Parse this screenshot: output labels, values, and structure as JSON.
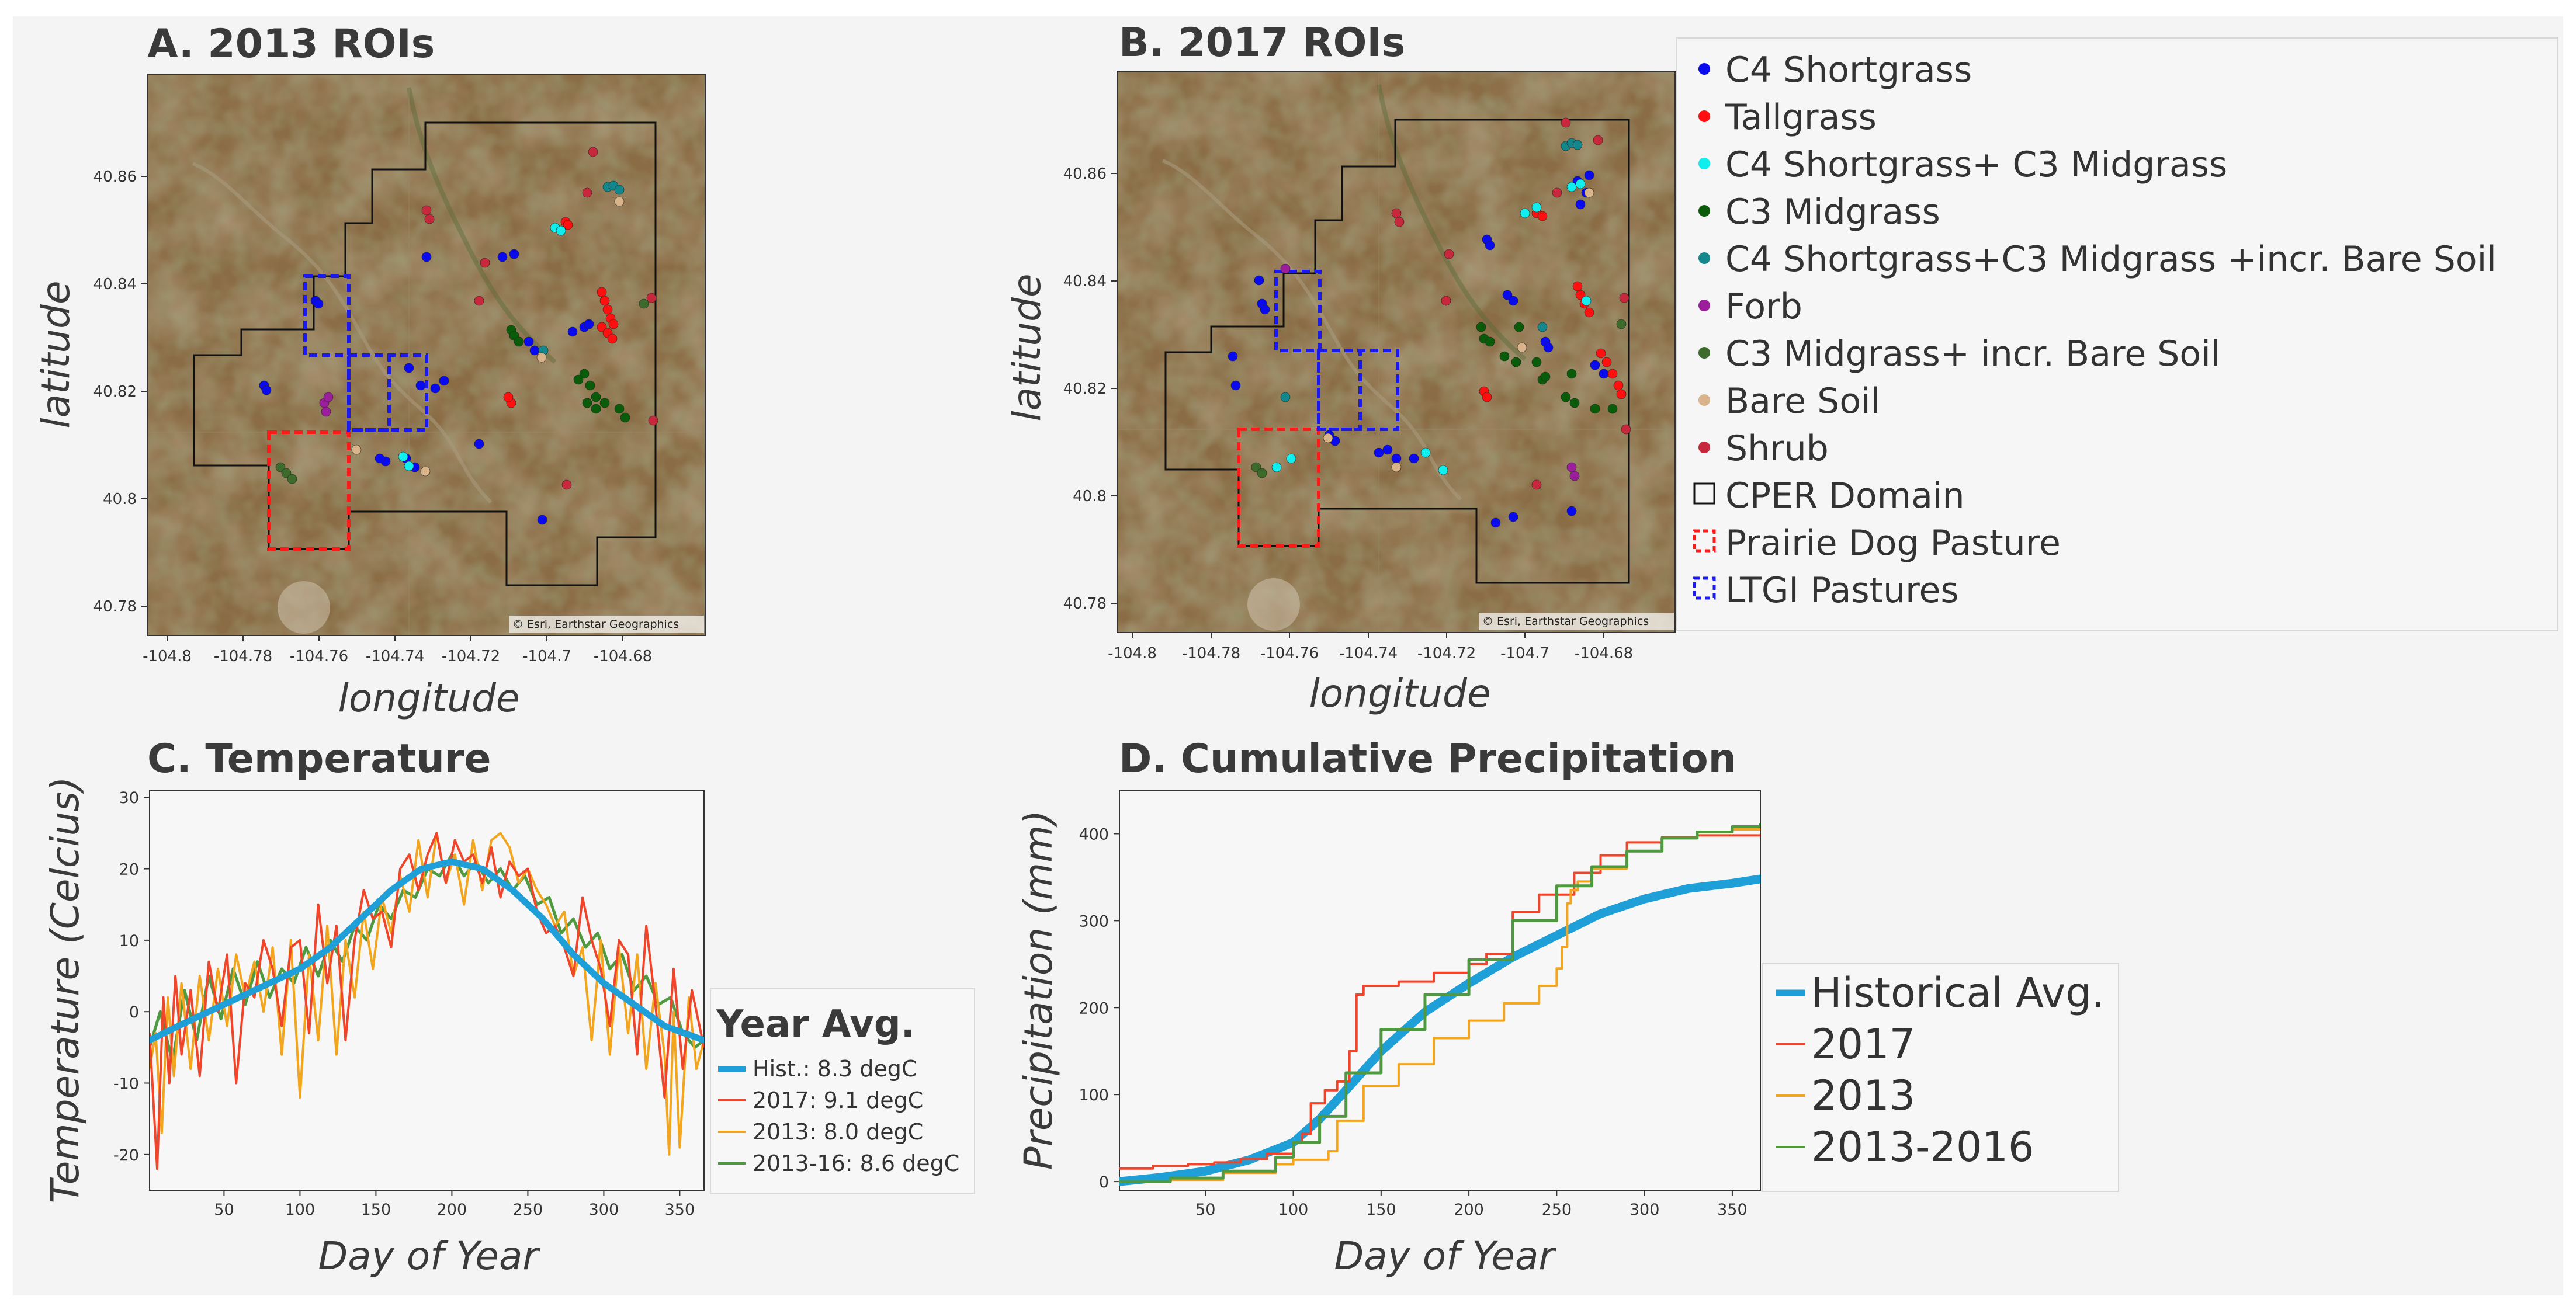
{
  "figure": {
    "background": "#f3f4f3"
  },
  "colors": {
    "c4_shortgrass": "#0a0aee",
    "tallgrass": "#ff1010",
    "c4_c3_midgrass": "#10eeee",
    "c3_midgrass": "#0a5c0a",
    "c4_c3_bare": "#12878c",
    "forb": "#9b1f9b",
    "c3_midgrass_bare": "#3d6b2b",
    "bare_soil": "#d9b48a",
    "shrub": "#c8283c",
    "domain_border": "#111111",
    "prairie_dog": "#ff1a1a",
    "ltgi": "#1a1aee",
    "hist": "#1f9fd8",
    "y2017": "#f0452a",
    "y2013": "#f2a51d",
    "y2013_16": "#4f9a40",
    "map_base": "#8a6c45"
  },
  "map_panels": [
    {
      "title": "A. 2013 ROIs",
      "xlabel": "longitude",
      "ylabel": "latitude",
      "credit": "© Esri, Earthstar Geographics",
      "x_ticks": [
        "-104.8",
        "-104.78",
        "-104.76",
        "-104.74",
        "-104.72",
        "-104.7",
        "-104.68"
      ],
      "y_ticks": [
        "40.86",
        "40.84",
        "40.82",
        "40.8",
        "40.78"
      ]
    },
    {
      "title": "B. 2017 ROIs",
      "xlabel": "longitude",
      "ylabel": "latitude",
      "credit": "© Esri, Earthstar Geographics",
      "x_ticks": [
        "-104.8",
        "-104.78",
        "-104.76",
        "-104.74",
        "-104.72",
        "-104.7",
        "-104.68"
      ],
      "y_ticks": [
        "40.86",
        "40.84",
        "40.82",
        "40.8",
        "40.78"
      ]
    }
  ],
  "roi_legend": {
    "items": [
      {
        "label": "C4 Shortgrass",
        "type": "dot",
        "color_key": "c4_shortgrass"
      },
      {
        "label": "Tallgrass",
        "type": "dot",
        "color_key": "tallgrass"
      },
      {
        "label": "C4 Shortgrass+ C3 Midgrass",
        "type": "dot",
        "color_key": "c4_c3_midgrass"
      },
      {
        "label": "C3 Midgrass",
        "type": "dot",
        "color_key": "c3_midgrass"
      },
      {
        "label": "C4 Shortgrass+C3 Midgrass +incr. Bare Soil",
        "type": "dot",
        "color_key": "c4_c3_bare"
      },
      {
        "label": "Forb",
        "type": "dot",
        "color_key": "forb"
      },
      {
        "label": "C3 Midgrass+ incr. Bare Soil",
        "type": "dot",
        "color_key": "c3_midgrass_bare"
      },
      {
        "label": "Bare Soil",
        "type": "dot",
        "color_key": "bare_soil"
      },
      {
        "label": "Shrub",
        "type": "dot",
        "color_key": "shrub"
      },
      {
        "label": "CPER Domain",
        "type": "box",
        "color_key": "domain_border"
      },
      {
        "label": "Prairie Dog Pasture",
        "type": "dashbox",
        "color_key": "prairie_dog"
      },
      {
        "label": "LTGI Pastures",
        "type": "dashbox",
        "color_key": "ltgi"
      }
    ]
  },
  "panel_c": {
    "title": "C. Temperature",
    "legend_title": "Year Avg.",
    "legend_items": [
      {
        "label": "Hist.: 8.3 degC",
        "color_key": "hist"
      },
      {
        "label": "2017: 9.1 degC",
        "color_key": "y2017"
      },
      {
        "label": "2013: 8.0 degC",
        "color_key": "y2013"
      },
      {
        "label": "2013-16: 8.6 degC",
        "color_key": "y2013_16"
      }
    ]
  },
  "panel_d": {
    "title": "D. Cumulative Precipitation",
    "legend_items": [
      {
        "label": "Historical Avg.",
        "color_key": "hist"
      },
      {
        "label": "2017",
        "color_key": "y2017"
      },
      {
        "label": "2013",
        "color_key": "y2013"
      },
      {
        "label": "2013-2016",
        "color_key": "y2013_16"
      }
    ]
  },
  "chart_data": [
    {
      "type": "line",
      "title": "C. Temperature",
      "xlabel": "Day of Year",
      "ylabel": "Temperature (Celcius)",
      "xlim": [
        1,
        366
      ],
      "ylim": [
        -25,
        31
      ],
      "x_ticks": [
        50,
        100,
        150,
        200,
        250,
        300,
        350
      ],
      "y_ticks": [
        30,
        20,
        10,
        0,
        -10,
        -20
      ],
      "series": [
        {
          "name": "Hist.: 8.3 degC",
          "color_key": "hist",
          "x": [
            1,
            20,
            40,
            60,
            80,
            100,
            120,
            140,
            160,
            180,
            200,
            220,
            240,
            260,
            280,
            300,
            320,
            340,
            366
          ],
          "values": [
            -4,
            -2,
            0,
            2,
            4,
            6,
            9,
            13,
            17,
            20,
            21,
            20,
            17,
            13,
            8,
            4,
            1,
            -2,
            -4
          ]
        },
        {
          "name": "2017: 9.1 degC",
          "color_key": "y2017",
          "x": [
            1,
            6,
            10,
            14,
            18,
            22,
            28,
            34,
            40,
            46,
            52,
            58,
            64,
            70,
            76,
            82,
            88,
            94,
            100,
            106,
            112,
            118,
            124,
            130,
            136,
            142,
            148,
            154,
            160,
            166,
            172,
            178,
            184,
            190,
            196,
            202,
            208,
            214,
            220,
            226,
            232,
            238,
            244,
            250,
            256,
            262,
            268,
            274,
            280,
            286,
            292,
            298,
            304,
            310,
            316,
            322,
            328,
            334,
            340,
            346,
            352,
            358,
            366
          ],
          "values": [
            -3,
            -22,
            2,
            -10,
            5,
            -6,
            3,
            -9,
            7,
            0,
            8,
            -10,
            4,
            2,
            10,
            6,
            -2,
            9,
            10,
            -3,
            15,
            4,
            12,
            -4,
            10,
            17,
            13,
            14,
            9,
            20,
            22,
            17,
            22,
            25,
            18,
            24,
            21,
            22,
            18,
            23,
            16,
            21,
            19,
            20,
            14,
            11,
            12,
            9,
            5,
            16,
            10,
            6,
            -2,
            10,
            8,
            -6,
            12,
            1,
            -12,
            6,
            -8,
            3,
            -5
          ]
        },
        {
          "name": "2013: 8.0 degC",
          "color_key": "y2013",
          "x": [
            1,
            5,
            9,
            13,
            17,
            22,
            28,
            34,
            40,
            46,
            52,
            58,
            64,
            70,
            76,
            82,
            88,
            94,
            100,
            106,
            112,
            118,
            124,
            130,
            136,
            142,
            148,
            154,
            160,
            166,
            172,
            178,
            184,
            190,
            196,
            202,
            208,
            214,
            220,
            226,
            232,
            238,
            244,
            250,
            256,
            262,
            268,
            274,
            280,
            286,
            292,
            298,
            304,
            310,
            316,
            322,
            328,
            334,
            340,
            343,
            346,
            350,
            356,
            361,
            366
          ],
          "values": [
            -8,
            -3,
            -17,
            2,
            -9,
            4,
            -8,
            5,
            -4,
            6,
            -2,
            8,
            2,
            7,
            0,
            9,
            -6,
            10,
            -12,
            8,
            -4,
            12,
            -6,
            10,
            2,
            14,
            6,
            16,
            11,
            19,
            14,
            24,
            16,
            25,
            18,
            22,
            15,
            24,
            17,
            24,
            25,
            23,
            18,
            20,
            17,
            15,
            12,
            14,
            5,
            9,
            -4,
            10,
            -6,
            9,
            -3,
            8,
            -8,
            4,
            -6,
            -20,
            0,
            -19,
            2,
            -8,
            -4
          ]
        },
        {
          "name": "2013-16: 8.6 degC",
          "color_key": "y2013_16",
          "x": [
            1,
            8,
            16,
            24,
            32,
            40,
            48,
            56,
            64,
            72,
            80,
            88,
            96,
            104,
            112,
            120,
            128,
            136,
            144,
            152,
            160,
            168,
            176,
            184,
            192,
            200,
            208,
            216,
            224,
            232,
            240,
            248,
            256,
            264,
            272,
            280,
            288,
            296,
            304,
            312,
            320,
            328,
            336,
            344,
            352,
            360,
            366
          ],
          "values": [
            -5,
            0,
            -7,
            3,
            -4,
            5,
            -1,
            6,
            1,
            7,
            2,
            6,
            4,
            9,
            5,
            10,
            7,
            12,
            10,
            15,
            13,
            17,
            16,
            20,
            19,
            22,
            19,
            21,
            18,
            20,
            17,
            19,
            15,
            16,
            11,
            13,
            9,
            11,
            6,
            8,
            3,
            5,
            1,
            2,
            -3,
            -5,
            -4
          ]
        }
      ]
    },
    {
      "type": "line",
      "title": "D. Cumulative Precipitation",
      "xlabel": "Day of Year",
      "ylabel": "Precipitation (mm)",
      "xlim": [
        1,
        366
      ],
      "ylim": [
        -10,
        450
      ],
      "x_ticks": [
        50,
        100,
        150,
        200,
        250,
        300,
        350
      ],
      "y_ticks": [
        400,
        300,
        200,
        100,
        0
      ],
      "series": [
        {
          "name": "Historical Avg.",
          "color_key": "hist",
          "x": [
            1,
            25,
            50,
            75,
            100,
            115,
            130,
            150,
            175,
            200,
            225,
            250,
            275,
            300,
            325,
            350,
            366
          ],
          "values": [
            0,
            5,
            12,
            25,
            45,
            72,
            105,
            150,
            195,
            228,
            258,
            283,
            308,
            325,
            337,
            343,
            348
          ]
        },
        {
          "name": "2017",
          "color_key": "y2017",
          "x": [
            1,
            20,
            40,
            55,
            70,
            85,
            100,
            105,
            110,
            118,
            125,
            132,
            136,
            140,
            160,
            180,
            200,
            210,
            225,
            240,
            260,
            275,
            290,
            310,
            330,
            366
          ],
          "values": [
            15,
            18,
            20,
            22,
            26,
            32,
            45,
            55,
            90,
            105,
            115,
            150,
            215,
            225,
            230,
            240,
            250,
            262,
            310,
            330,
            355,
            375,
            390,
            396,
            398,
            398
          ]
        },
        {
          "name": "2013",
          "color_key": "y2013",
          "x": [
            1,
            30,
            60,
            90,
            100,
            120,
            125,
            140,
            160,
            180,
            200,
            220,
            240,
            250,
            253,
            256,
            258,
            262,
            270,
            290,
            310,
            330,
            350,
            366
          ],
          "values": [
            0,
            2,
            10,
            20,
            25,
            35,
            70,
            110,
            135,
            165,
            185,
            205,
            225,
            245,
            270,
            320,
            335,
            345,
            360,
            380,
            395,
            402,
            405,
            407
          ]
        },
        {
          "name": "2013-2016",
          "color_key": "y2013_16",
          "x": [
            1,
            30,
            60,
            90,
            100,
            115,
            130,
            150,
            175,
            200,
            225,
            250,
            270,
            290,
            310,
            330,
            350,
            366
          ],
          "values": [
            0,
            4,
            12,
            28,
            45,
            75,
            125,
            175,
            215,
            255,
            300,
            340,
            362,
            380,
            395,
            402,
            408,
            412
          ]
        }
      ]
    }
  ]
}
